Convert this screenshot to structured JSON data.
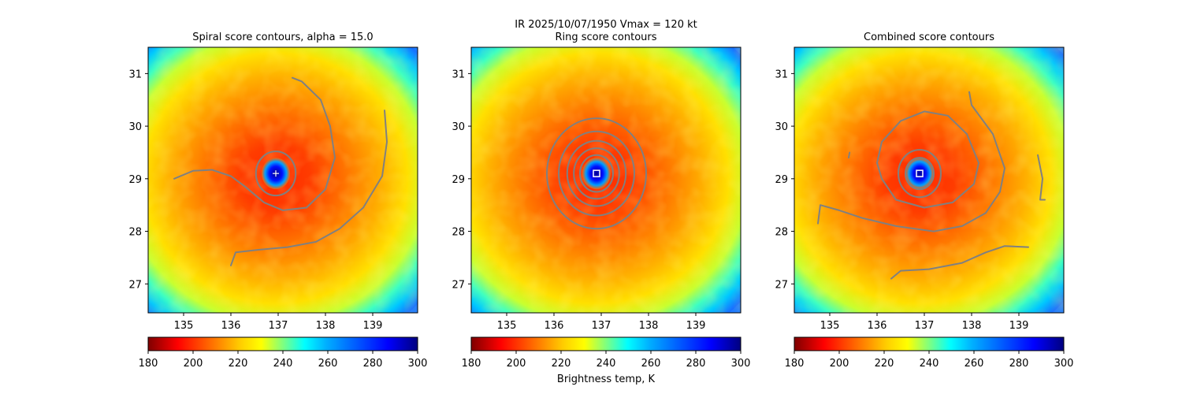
{
  "figure": {
    "suptitle": "IR  2025/10/07/1950    Vmax = 120 kt",
    "colorbar_label": "Brightness temp, K"
  },
  "chart_data": [
    {
      "type": "heatmap",
      "title": "Spiral score contours, alpha = 15.0",
      "xlabel": "",
      "ylabel": "",
      "xlim": [
        134.25,
        139.95
      ],
      "ylim": [
        26.45,
        31.5
      ],
      "xticks": [
        135,
        136,
        137,
        138,
        139
      ],
      "yticks": [
        27,
        28,
        29,
        30,
        31
      ],
      "colormap": "jet_r",
      "colorbar": {
        "ticks": [
          180,
          200,
          220,
          240,
          260,
          280,
          300
        ],
        "range": [
          180,
          300
        ],
        "orientation": "horizontal"
      },
      "center": [
        136.95,
        29.1
      ],
      "center_marker": "plus",
      "eye_radius_deg": 0.3,
      "contour_color": "#808080",
      "contours": [
        {
          "kind": "spiral",
          "points": [
            [
              134.8,
              29.0
            ],
            [
              135.2,
              29.15
            ],
            [
              135.6,
              29.17
            ],
            [
              136.0,
              29.05
            ],
            [
              136.3,
              28.85
            ],
            [
              136.7,
              28.55
            ],
            [
              137.1,
              28.4
            ],
            [
              137.6,
              28.45
            ],
            [
              138.0,
              28.8
            ],
            [
              138.2,
              29.4
            ],
            [
              138.1,
              30.0
            ],
            [
              137.9,
              30.5
            ],
            [
              137.5,
              30.85
            ],
            [
              137.3,
              30.92
            ]
          ]
        },
        {
          "kind": "spiral",
          "points": [
            [
              136.0,
              27.35
            ],
            [
              136.1,
              27.6
            ],
            [
              136.6,
              27.65
            ],
            [
              137.2,
              27.7
            ],
            [
              137.8,
              27.8
            ],
            [
              138.3,
              28.05
            ],
            [
              138.8,
              28.45
            ],
            [
              139.2,
              29.05
            ],
            [
              139.3,
              29.7
            ],
            [
              139.25,
              30.3
            ]
          ]
        },
        {
          "kind": "ring",
          "center": [
            136.95,
            29.1
          ],
          "r": 0.42
        }
      ]
    },
    {
      "type": "heatmap",
      "title": "Ring score contours",
      "xlabel": "",
      "ylabel": "",
      "xlim": [
        134.25,
        139.95
      ],
      "ylim": [
        26.45,
        31.5
      ],
      "xticks": [
        135,
        136,
        137,
        138,
        139
      ],
      "yticks": [
        27,
        28,
        29,
        30,
        31
      ],
      "colormap": "jet_r",
      "colorbar": {
        "ticks": [
          180,
          200,
          220,
          240,
          260,
          280,
          300
        ],
        "range": [
          180,
          300
        ],
        "orientation": "horizontal"
      },
      "center": [
        136.9,
        29.1
      ],
      "center_marker": "square",
      "eye_radius_deg": 0.3,
      "contour_color": "#808080",
      "contours": [
        {
          "kind": "ring",
          "center": [
            136.9,
            29.1
          ],
          "r": 0.35
        },
        {
          "kind": "ring",
          "center": [
            136.9,
            29.1
          ],
          "r": 0.48
        },
        {
          "kind": "ring",
          "center": [
            136.9,
            29.1
          ],
          "r": 0.62
        },
        {
          "kind": "ring",
          "center": [
            136.9,
            29.1
          ],
          "r": 0.8
        },
        {
          "kind": "ring",
          "center": [
            136.9,
            29.1
          ],
          "r": 1.05
        }
      ]
    },
    {
      "type": "heatmap",
      "title": "Combined score contours",
      "xlabel": "",
      "ylabel": "",
      "xlim": [
        134.25,
        139.95
      ],
      "ylim": [
        26.45,
        31.5
      ],
      "xticks": [
        135,
        136,
        137,
        138,
        139
      ],
      "yticks": [
        27,
        28,
        29,
        30,
        31
      ],
      "colormap": "jet_r",
      "colorbar": {
        "ticks": [
          180,
          200,
          220,
          240,
          260,
          280,
          300
        ],
        "range": [
          180,
          300
        ],
        "orientation": "horizontal"
      },
      "center": [
        136.9,
        29.1
      ],
      "center_marker": "square",
      "eye_radius_deg": 0.3,
      "contour_color": "#808080",
      "contours": [
        {
          "kind": "ring",
          "center": [
            136.9,
            29.1
          ],
          "r": 0.3
        },
        {
          "kind": "ring",
          "center": [
            136.9,
            29.1
          ],
          "r": 0.45
        },
        {
          "kind": "spiral",
          "points": [
            [
              136.0,
              29.3
            ],
            [
              136.1,
              29.7
            ],
            [
              136.5,
              30.1
            ],
            [
              137.0,
              30.28
            ],
            [
              137.5,
              30.2
            ],
            [
              137.9,
              29.85
            ],
            [
              138.15,
              29.3
            ],
            [
              138.05,
              28.9
            ],
            [
              137.6,
              28.55
            ],
            [
              137.0,
              28.45
            ],
            [
              136.4,
              28.6
            ],
            [
              136.1,
              29.0
            ],
            [
              136.0,
              29.3
            ]
          ]
        },
        {
          "kind": "spiral",
          "points": [
            [
              134.75,
              28.15
            ],
            [
              134.8,
              28.5
            ],
            [
              135.2,
              28.4
            ],
            [
              135.7,
              28.25
            ],
            [
              136.4,
              28.1
            ],
            [
              137.2,
              28.0
            ],
            [
              137.8,
              28.1
            ],
            [
              138.3,
              28.35
            ],
            [
              138.6,
              28.75
            ],
            [
              138.7,
              29.2
            ],
            [
              138.45,
              29.85
            ],
            [
              138.0,
              30.4
            ],
            [
              137.95,
              30.65
            ]
          ]
        },
        {
          "kind": "spiral",
          "points": [
            [
              139.4,
              29.45
            ],
            [
              139.5,
              29.0
            ],
            [
              139.45,
              28.6
            ],
            [
              139.55,
              28.6
            ]
          ]
        },
        {
          "kind": "spiral",
          "points": [
            [
              136.3,
              27.1
            ],
            [
              136.5,
              27.25
            ],
            [
              137.1,
              27.28
            ],
            [
              137.8,
              27.4
            ],
            [
              138.3,
              27.6
            ],
            [
              138.7,
              27.72
            ],
            [
              139.2,
              27.7
            ]
          ]
        },
        {
          "kind": "spiral",
          "points": [
            [
              135.4,
              29.4
            ],
            [
              135.42,
              29.5
            ]
          ]
        }
      ]
    }
  ]
}
